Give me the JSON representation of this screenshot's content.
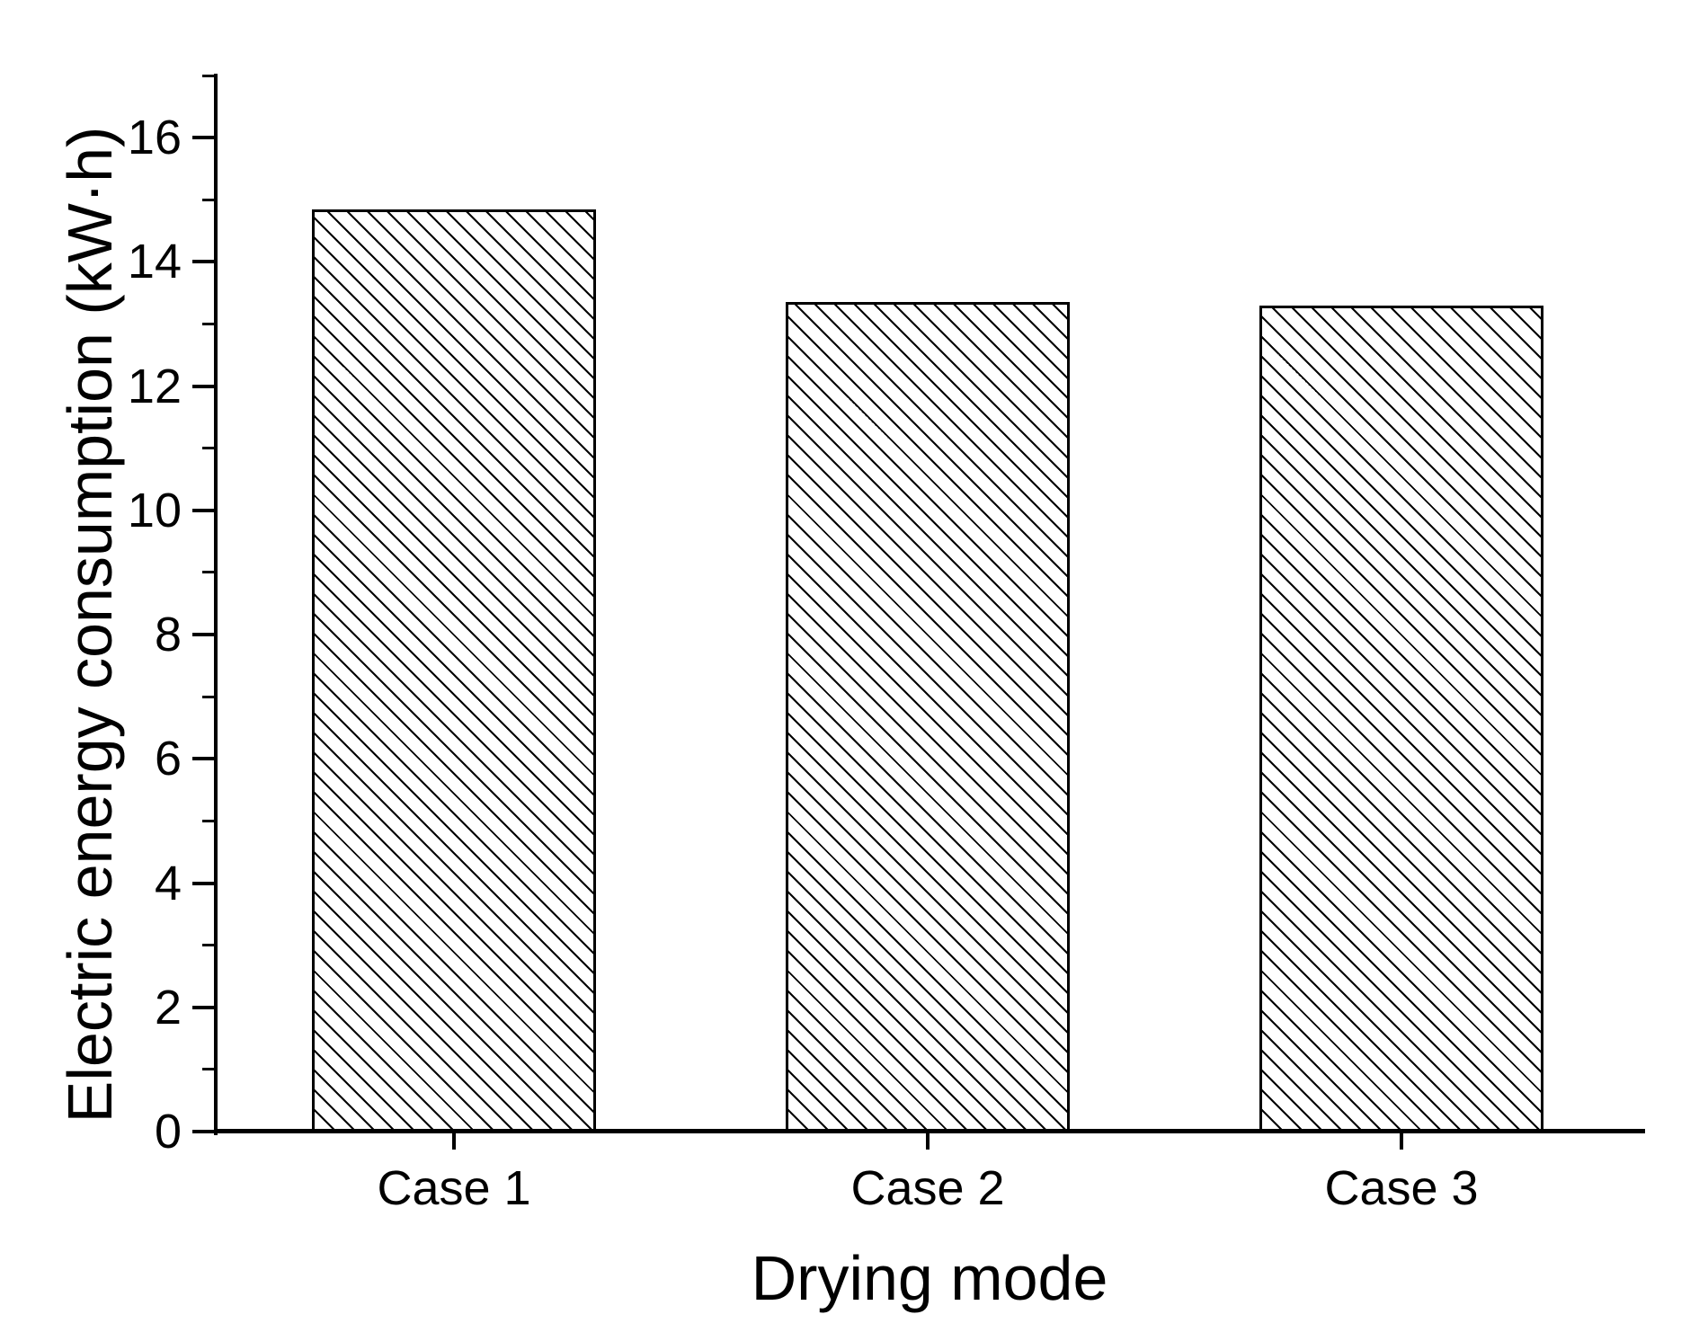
{
  "chart_data": {
    "type": "bar",
    "title": "",
    "categories": [
      "Case 1",
      "Case 2",
      "Case 3"
    ],
    "values": [
      14.85,
      13.35,
      13.3
    ],
    "xlabel": "Drying mode",
    "ylabel": "Electric energy consumption (kW·h)",
    "ylim": [
      0,
      17
    ],
    "y_major_ticks": [
      0,
      2,
      4,
      6,
      8,
      10,
      12,
      14,
      16
    ],
    "y_major_tick_labels": [
      "0",
      "2",
      "4",
      "6",
      "8",
      "10",
      "12",
      "14",
      "16"
    ],
    "y_minor_tick_step": 1,
    "grid": false,
    "legend": false,
    "bar_style": {
      "fill_color": "#ffffff",
      "hatch": "backslash-diagonal",
      "hatch_color": "#000000",
      "edge_color": "#000000"
    }
  },
  "colors": {
    "background": "#ffffff",
    "axis": "#000000",
    "text": "#000000"
  }
}
